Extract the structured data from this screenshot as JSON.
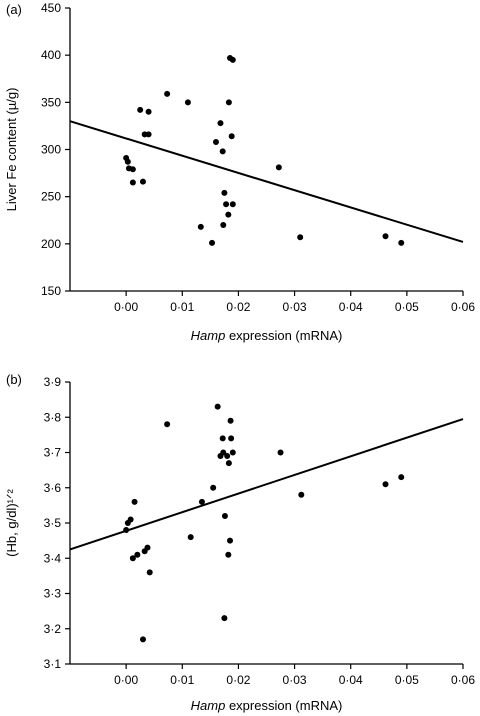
{
  "chart_data": [
    {
      "type": "scatter",
      "panel_label": "(a)",
      "title": "",
      "xlabel_italic": "Hamp",
      "xlabel_rest": " expression (mRNA)",
      "ylabel": "Liver Fe content (µ/g)",
      "xlim": [
        -0.01,
        0.06
      ],
      "ylim": [
        150,
        450
      ],
      "xticks": [
        0.0,
        0.01,
        0.02,
        0.03,
        0.04,
        0.05,
        0.06
      ],
      "xtick_labels": [
        "0·00",
        "0·01",
        "0·02",
        "0·03",
        "0·04",
        "0·05",
        "0·06"
      ],
      "yticks": [
        150,
        200,
        250,
        300,
        350,
        400,
        450
      ],
      "ytick_labels": [
        "150",
        "200",
        "250",
        "300",
        "350",
        "400",
        "450"
      ],
      "points": [
        [
          0.0,
          291
        ],
        [
          0.0003,
          287
        ],
        [
          0.0005,
          280
        ],
        [
          0.0012,
          279
        ],
        [
          0.0012,
          265
        ],
        [
          0.0025,
          342
        ],
        [
          0.003,
          266
        ],
        [
          0.0033,
          316
        ],
        [
          0.004,
          340
        ],
        [
          0.004,
          316
        ],
        [
          0.0073,
          359
        ],
        [
          0.011,
          350
        ],
        [
          0.0133,
          218
        ],
        [
          0.0153,
          201
        ],
        [
          0.016,
          308
        ],
        [
          0.0168,
          328
        ],
        [
          0.0172,
          298
        ],
        [
          0.0173,
          220
        ],
        [
          0.0175,
          254
        ],
        [
          0.0178,
          242
        ],
        [
          0.0182,
          231
        ],
        [
          0.0183,
          350
        ],
        [
          0.0185,
          397
        ],
        [
          0.0188,
          314
        ],
        [
          0.019,
          242
        ],
        [
          0.019,
          395
        ],
        [
          0.0272,
          281
        ],
        [
          0.031,
          207
        ],
        [
          0.0462,
          208
        ],
        [
          0.049,
          201
        ]
      ],
      "fit_line": [
        [
          -0.01,
          330
        ],
        [
          0.06,
          202
        ]
      ],
      "grid": false,
      "point_color": "#000000",
      "line_color": "#000000"
    },
    {
      "type": "scatter",
      "panel_label": "(b)",
      "title": "",
      "xlabel_italic": "Hamp",
      "xlabel_rest": " expression (mRNA)",
      "ylabel": "(Hb, g/dl)¹ᐟ²",
      "xlim": [
        -0.01,
        0.06
      ],
      "ylim": [
        3.1,
        3.9
      ],
      "xticks": [
        0.0,
        0.01,
        0.02,
        0.03,
        0.04,
        0.05,
        0.06
      ],
      "xtick_labels": [
        "0·00",
        "0·01",
        "0·02",
        "0·03",
        "0·04",
        "0·05",
        "0·06"
      ],
      "yticks": [
        3.1,
        3.2,
        3.3,
        3.4,
        3.5,
        3.6,
        3.7,
        3.8,
        3.9
      ],
      "ytick_labels": [
        "3·1",
        "3·2",
        "3·3",
        "3·4",
        "3·5",
        "3·6",
        "3·7",
        "3·8",
        "3·9"
      ],
      "points": [
        [
          0.0,
          3.48
        ],
        [
          0.0003,
          3.5
        ],
        [
          0.0008,
          3.51
        ],
        [
          0.0012,
          3.4
        ],
        [
          0.0015,
          3.56
        ],
        [
          0.002,
          3.41
        ],
        [
          0.003,
          3.17
        ],
        [
          0.0033,
          3.42
        ],
        [
          0.0038,
          3.43
        ],
        [
          0.0042,
          3.36
        ],
        [
          0.0073,
          3.78
        ],
        [
          0.0115,
          3.46
        ],
        [
          0.0135,
          3.56
        ],
        [
          0.0155,
          3.6
        ],
        [
          0.0163,
          3.83
        ],
        [
          0.0168,
          3.69
        ],
        [
          0.0172,
          3.74
        ],
        [
          0.0173,
          3.7
        ],
        [
          0.0175,
          3.23
        ],
        [
          0.0176,
          3.52
        ],
        [
          0.018,
          3.69
        ],
        [
          0.0182,
          3.41
        ],
        [
          0.0183,
          3.67
        ],
        [
          0.0185,
          3.45
        ],
        [
          0.0186,
          3.79
        ],
        [
          0.0187,
          3.74
        ],
        [
          0.019,
          3.7
        ],
        [
          0.0275,
          3.7
        ],
        [
          0.0312,
          3.58
        ],
        [
          0.0462,
          3.61
        ],
        [
          0.049,
          3.63
        ]
      ],
      "fit_line": [
        [
          -0.01,
          3.425
        ],
        [
          0.06,
          3.795
        ]
      ],
      "grid": false,
      "point_color": "#000000",
      "line_color": "#000000"
    }
  ]
}
